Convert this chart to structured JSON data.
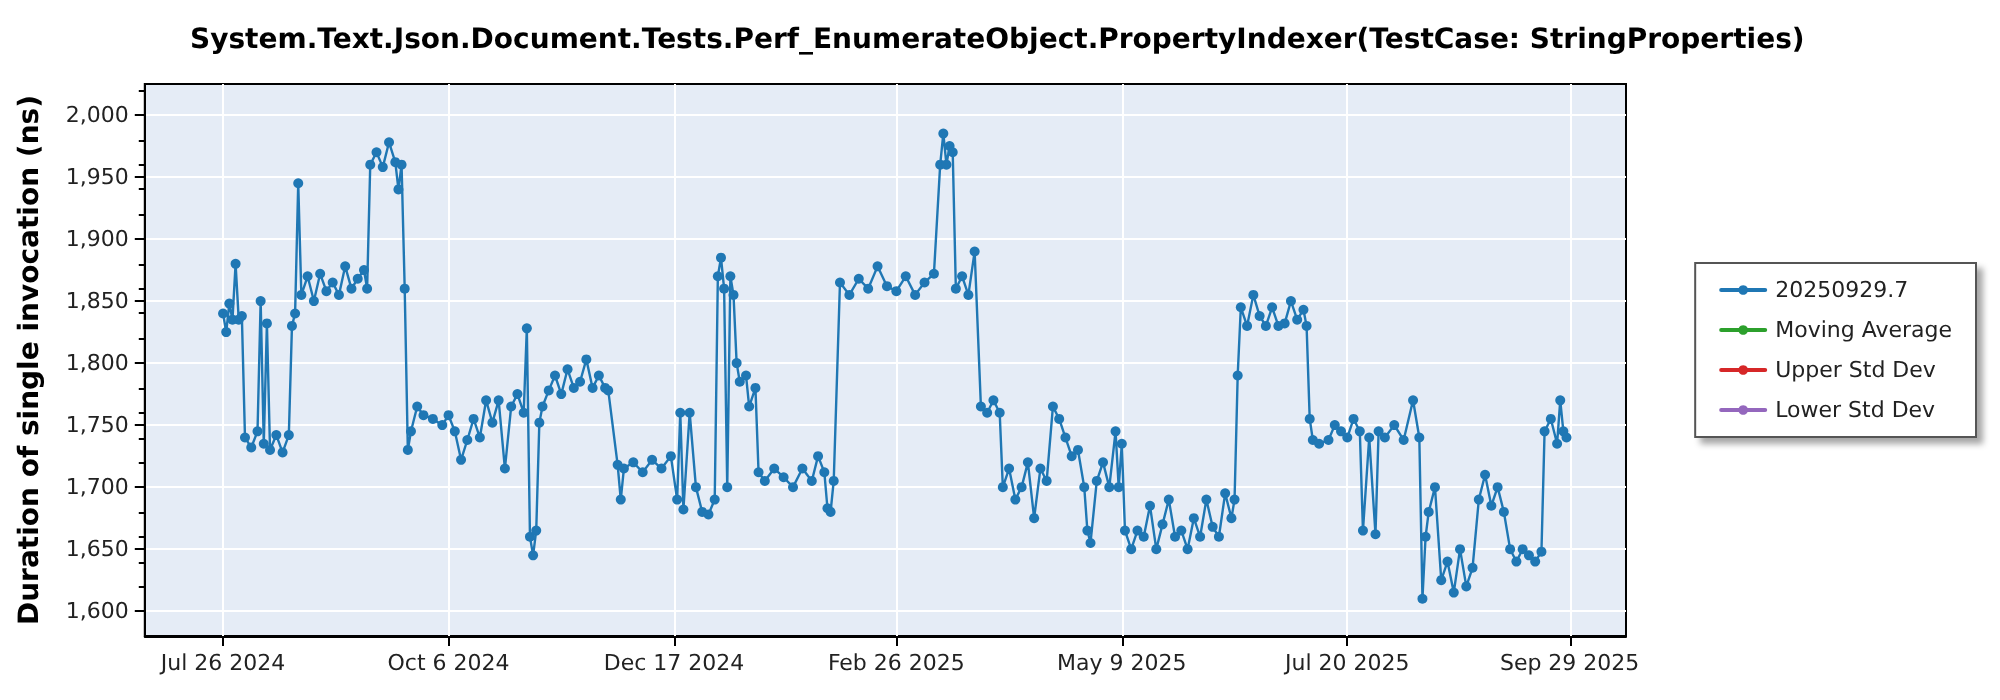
{
  "chart_data": {
    "type": "line",
    "title": "System.Text.Json.Document.Tests.Perf_EnumerateObject.PropertyIndexer(TestCase: StringProperties)",
    "ylabel": "Duration of single invocation (ns)",
    "xlim": [
      "2024-07-01",
      "2025-10-17"
    ],
    "xticks": [
      {
        "value": "2024-07-26",
        "label": "Jul 26 2024"
      },
      {
        "value": "2024-10-06",
        "label": "Oct 6 2024"
      },
      {
        "value": "2024-12-17",
        "label": "Dec 17 2024"
      },
      {
        "value": "2025-02-26",
        "label": "Feb 26 2025"
      },
      {
        "value": "2025-05-09",
        "label": "May 9 2025"
      },
      {
        "value": "2025-07-20",
        "label": "Jul 20 2025"
      },
      {
        "value": "2025-09-29",
        "label": "Sep 29 2025"
      }
    ],
    "ylim": [
      1580,
      2025
    ],
    "yticks": [
      {
        "value": 1600,
        "label": "1,600"
      },
      {
        "value": 1650,
        "label": "1,650"
      },
      {
        "value": 1700,
        "label": "1,700"
      },
      {
        "value": 1750,
        "label": "1,750"
      },
      {
        "value": 1800,
        "label": "1,800"
      },
      {
        "value": 1850,
        "label": "1,850"
      },
      {
        "value": 1900,
        "label": "1,900"
      },
      {
        "value": 1950,
        "label": "1,950"
      },
      {
        "value": 2000,
        "label": "2,000"
      }
    ],
    "grid": true,
    "legend": "right",
    "marker": "circle",
    "line_style": "solid",
    "series": [
      {
        "name": "20250929.7",
        "color": "#1f77b4",
        "x": [
          "2024-07-26",
          "2024-07-27",
          "2024-07-28",
          "2024-07-29",
          "2024-07-30",
          "2024-07-31",
          "2024-08-01",
          "2024-08-02",
          "2024-08-04",
          "2024-08-06",
          "2024-08-07",
          "2024-08-08",
          "2024-08-09",
          "2024-08-10",
          "2024-08-12",
          "2024-08-14",
          "2024-08-16",
          "2024-08-17",
          "2024-08-18",
          "2024-08-19",
          "2024-08-20",
          "2024-08-22",
          "2024-08-24",
          "2024-08-26",
          "2024-08-28",
          "2024-08-30",
          "2024-09-01",
          "2024-09-03",
          "2024-09-05",
          "2024-09-07",
          "2024-09-09",
          "2024-09-10",
          "2024-09-11",
          "2024-09-13",
          "2024-09-15",
          "2024-09-17",
          "2024-09-19",
          "2024-09-20",
          "2024-09-21",
          "2024-09-22",
          "2024-09-23",
          "2024-09-24",
          "2024-09-26",
          "2024-09-28",
          "2024-10-01",
          "2024-10-04",
          "2024-10-06",
          "2024-10-08",
          "2024-10-10",
          "2024-10-12",
          "2024-10-14",
          "2024-10-16",
          "2024-10-18",
          "2024-10-20",
          "2024-10-22",
          "2024-10-24",
          "2024-10-26",
          "2024-10-28",
          "2024-10-30",
          "2024-10-31",
          "2024-11-01",
          "2024-11-02",
          "2024-11-03",
          "2024-11-04",
          "2024-11-05",
          "2024-11-07",
          "2024-11-09",
          "2024-11-11",
          "2024-11-13",
          "2024-11-15",
          "2024-11-17",
          "2024-11-19",
          "2024-11-21",
          "2024-11-23",
          "2024-11-25",
          "2024-11-26",
          "2024-11-29",
          "2024-11-30",
          "2024-12-01",
          "2024-12-04",
          "2024-12-07",
          "2024-12-10",
          "2024-12-13",
          "2024-12-16",
          "2024-12-18",
          "2024-12-19",
          "2024-12-20",
          "2024-12-22",
          "2024-12-24",
          "2024-12-26",
          "2024-12-28",
          "2024-12-30",
          "2024-12-31",
          "2025-01-01",
          "2025-01-02",
          "2025-01-03",
          "2025-01-04",
          "2025-01-05",
          "2025-01-06",
          "2025-01-07",
          "2025-01-09",
          "2025-01-10",
          "2025-01-12",
          "2025-01-13",
          "2025-01-15",
          "2025-01-18",
          "2025-01-21",
          "2025-01-24",
          "2025-01-27",
          "2025-01-30",
          "2025-02-01",
          "2025-02-03",
          "2025-02-04",
          "2025-02-05",
          "2025-02-06",
          "2025-02-08",
          "2025-02-11",
          "2025-02-14",
          "2025-02-17",
          "2025-02-20",
          "2025-02-23",
          "2025-02-26",
          "2025-03-01",
          "2025-03-04",
          "2025-03-07",
          "2025-03-10",
          "2025-03-12",
          "2025-03-13",
          "2025-03-14",
          "2025-03-15",
          "2025-03-16",
          "2025-03-17",
          "2025-03-19",
          "2025-03-21",
          "2025-03-23",
          "2025-03-25",
          "2025-03-27",
          "2025-03-29",
          "2025-03-31",
          "2025-04-01",
          "2025-04-03",
          "2025-04-05",
          "2025-04-07",
          "2025-04-09",
          "2025-04-11",
          "2025-04-13",
          "2025-04-15",
          "2025-04-17",
          "2025-04-19",
          "2025-04-21",
          "2025-04-23",
          "2025-04-25",
          "2025-04-27",
          "2025-04-28",
          "2025-04-29",
          "2025-05-01",
          "2025-05-03",
          "2025-05-05",
          "2025-05-07",
          "2025-05-08",
          "2025-05-09",
          "2025-05-10",
          "2025-05-12",
          "2025-05-14",
          "2025-05-16",
          "2025-05-18",
          "2025-05-20",
          "2025-05-22",
          "2025-05-24",
          "2025-05-26",
          "2025-05-28",
          "2025-05-30",
          "2025-06-01",
          "2025-06-03",
          "2025-06-05",
          "2025-06-07",
          "2025-06-09",
          "2025-06-11",
          "2025-06-13",
          "2025-06-14",
          "2025-06-15",
          "2025-06-16",
          "2025-06-18",
          "2025-06-20",
          "2025-06-22",
          "2025-06-24",
          "2025-06-26",
          "2025-06-28",
          "2025-06-30",
          "2025-07-02",
          "2025-07-04",
          "2025-07-06",
          "2025-07-07",
          "2025-07-08",
          "2025-07-09",
          "2025-07-11",
          "2025-07-14",
          "2025-07-16",
          "2025-07-18",
          "2025-07-20",
          "2025-07-22",
          "2025-07-24",
          "2025-07-25",
          "2025-07-27",
          "2025-07-29",
          "2025-07-30",
          "2025-08-01",
          "2025-08-04",
          "2025-08-07",
          "2025-08-10",
          "2025-08-12",
          "2025-08-13",
          "2025-08-14",
          "2025-08-15",
          "2025-08-17",
          "2025-08-19",
          "2025-08-21",
          "2025-08-23",
          "2025-08-25",
          "2025-08-27",
          "2025-08-29",
          "2025-08-31",
          "2025-09-02",
          "2025-09-04",
          "2025-09-06",
          "2025-09-08",
          "2025-09-10",
          "2025-09-12",
          "2025-09-14",
          "2025-09-16",
          "2025-09-18",
          "2025-09-20",
          "2025-09-21",
          "2025-09-23",
          "2025-09-25",
          "2025-09-26",
          "2025-09-27",
          "2025-09-28"
        ],
        "values": [
          1840,
          1825,
          1848,
          1835,
          1880,
          1835,
          1838,
          1740,
          1732,
          1745,
          1850,
          1735,
          1832,
          1730,
          1742,
          1728,
          1742,
          1830,
          1840,
          1945,
          1855,
          1870,
          1850,
          1872,
          1858,
          1865,
          1855,
          1878,
          1860,
          1868,
          1875,
          1860,
          1960,
          1970,
          1958,
          1978,
          1962,
          1940,
          1960,
          1860,
          1730,
          1745,
          1765,
          1758,
          1755,
          1750,
          1758,
          1745,
          1722,
          1738,
          1755,
          1740,
          1770,
          1752,
          1770,
          1715,
          1765,
          1775,
          1760,
          1828,
          1660,
          1645,
          1665,
          1752,
          1765,
          1778,
          1790,
          1775,
          1795,
          1780,
          1785,
          1803,
          1780,
          1790,
          1780,
          1778,
          1718,
          1690,
          1715,
          1720,
          1712,
          1722,
          1715,
          1725,
          1690,
          1760,
          1682,
          1760,
          1700,
          1680,
          1678,
          1690,
          1870,
          1885,
          1860,
          1700,
          1870,
          1855,
          1800,
          1785,
          1790,
          1765,
          1780,
          1712,
          1705,
          1715,
          1708,
          1700,
          1715,
          1705,
          1725,
          1712,
          1683,
          1680,
          1705,
          1865,
          1855,
          1868,
          1860,
          1878,
          1862,
          1858,
          1870,
          1855,
          1865,
          1872,
          1960,
          1985,
          1960,
          1975,
          1970,
          1860,
          1870,
          1855,
          1890,
          1765,
          1760,
          1770,
          1760,
          1700,
          1715,
          1690,
          1700,
          1720,
          1675,
          1715,
          1705,
          1765,
          1755,
          1740,
          1725,
          1730,
          1700,
          1665,
          1655,
          1705,
          1720,
          1700,
          1745,
          1700,
          1735,
          1665,
          1650,
          1665,
          1660,
          1685,
          1650,
          1670,
          1690,
          1660,
          1665,
          1650,
          1675,
          1660,
          1690,
          1668,
          1660,
          1695,
          1675,
          1690,
          1790,
          1845,
          1830,
          1855,
          1838,
          1830,
          1845,
          1830,
          1832,
          1850,
          1835,
          1843,
          1830,
          1755,
          1738,
          1735,
          1738,
          1750,
          1745,
          1740,
          1755,
          1745,
          1665,
          1740,
          1662,
          1745,
          1740,
          1750,
          1738,
          1770,
          1740,
          1610,
          1660,
          1680,
          1700,
          1625,
          1640,
          1615,
          1650,
          1620,
          1635,
          1690,
          1710,
          1685,
          1700,
          1680,
          1650,
          1640,
          1650,
          1645,
          1640,
          1648,
          1745,
          1755,
          1735,
          1770,
          1745,
          1740
        ]
      },
      {
        "name": "Moving Average",
        "color": "#2ca02c"
      },
      {
        "name": "Upper Std Dev",
        "color": "#d62728"
      },
      {
        "name": "Lower Std Dev",
        "color": "#9467bd"
      }
    ]
  }
}
